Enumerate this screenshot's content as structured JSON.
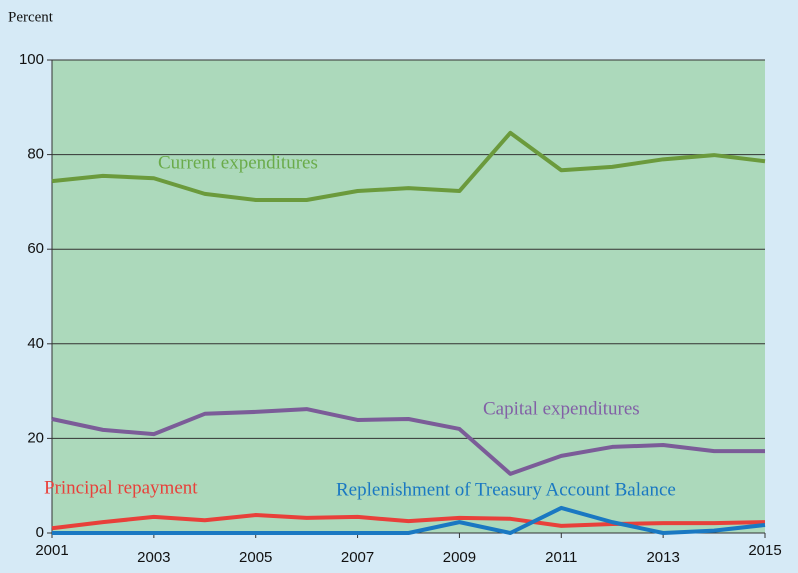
{
  "chart_data": {
    "type": "line",
    "y_label": "Percent",
    "x": [
      2001,
      2002,
      2003,
      2004,
      2005,
      2006,
      2007,
      2008,
      2009,
      2010,
      2011,
      2012,
      2013,
      2014,
      2015
    ],
    "xlim": [
      2001,
      2015
    ],
    "xticks": [
      2001,
      2003,
      2005,
      2007,
      2009,
      2011,
      2013,
      2015
    ],
    "ylim": [
      0,
      100
    ],
    "yticks": [
      0,
      20,
      40,
      60,
      80,
      100
    ],
    "grid": true,
    "series": [
      {
        "name": "Current expenditures",
        "color": "#6b9a3c",
        "values": [
          74.4,
          75.5,
          75,
          71.7,
          70.4,
          70.4,
          72.3,
          72.9,
          72.3,
          84.6,
          76.7,
          77.4,
          79,
          79.9,
          78.6
        ]
      },
      {
        "name": "Capital expenditures",
        "color": "#7b5c98",
        "values": [
          24.1,
          21.8,
          20.9,
          25.2,
          25.6,
          26.2,
          23.9,
          24.1,
          22,
          12.5,
          16.3,
          18.2,
          18.6,
          17.3,
          17.3
        ]
      },
      {
        "name": "Principal repayment",
        "color": "#e8403a",
        "values": [
          1,
          2.3,
          3.4,
          2.7,
          3.8,
          3.2,
          3.4,
          2.5,
          3.2,
          3,
          1.5,
          1.9,
          2.1,
          2.1,
          2.3
        ]
      },
      {
        "name": "Replenishment of Treasury Account Balance",
        "color": "#1a78c2",
        "values": [
          0,
          0,
          0,
          0,
          0,
          0,
          0,
          0,
          2.3,
          0,
          5.3,
          2.3,
          0,
          0.5,
          1.7
        ]
      }
    ]
  }
}
